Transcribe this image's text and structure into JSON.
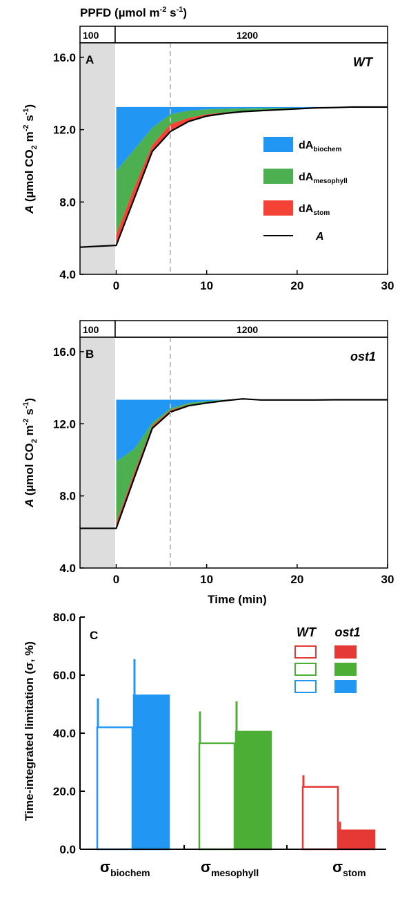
{
  "ppfd_label": "PPFD (µmol m⁻² s⁻¹)",
  "chart_data": [
    {
      "type": "area",
      "panel": "A",
      "genotype": "WT",
      "ppfd_bar": [
        {
          "label": "100",
          "from": -4,
          "to": 0
        },
        {
          "label": "1200",
          "from": 0,
          "to": 30
        }
      ],
      "xlim": [
        -4,
        30
      ],
      "ylim": [
        4.0,
        16.8
      ],
      "xticks": [
        "0",
        "10",
        "20",
        "30"
      ],
      "yticks": [
        "4.0",
        "8.0",
        "12.0",
        "16.0"
      ],
      "ylabel": "A (µmol CO₂ m⁻² s⁻¹)",
      "xlabel": "",
      "legend": [
        "dAbiochem",
        "dAmesophyll",
        "dAstom",
        "A"
      ],
      "dashed_line_x": 6,
      "A": {
        "x": [
          -4,
          0,
          2,
          4,
          6,
          8,
          10,
          12,
          14,
          16,
          18,
          20,
          22,
          24,
          26,
          28,
          30
        ],
        "y": [
          5.5,
          5.6,
          8.2,
          10.8,
          11.9,
          12.45,
          12.75,
          12.9,
          13.0,
          13.05,
          13.1,
          13.15,
          13.2,
          13.22,
          13.25,
          13.25,
          13.25
        ]
      },
      "stom_top": {
        "x": [
          0,
          2,
          4,
          6,
          8,
          10,
          12,
          14,
          16,
          18,
          20,
          22,
          24,
          26,
          28,
          30
        ],
        "y": [
          6.2,
          8.8,
          11.15,
          12.3,
          12.65,
          12.85,
          12.95,
          13.03,
          13.08,
          13.12,
          13.16,
          13.2,
          13.22,
          13.25,
          13.25,
          13.25
        ]
      },
      "mesophyll_top": {
        "x": [
          0,
          2,
          4,
          6,
          8,
          10,
          12,
          14,
          16,
          18,
          20,
          22,
          24,
          26,
          28,
          30
        ],
        "y": [
          9.7,
          10.9,
          12.1,
          12.85,
          13.05,
          13.12,
          13.15,
          13.17,
          13.19,
          13.2,
          13.21,
          13.22,
          13.23,
          13.25,
          13.25,
          13.25
        ]
      },
      "biochem_top": {
        "x": [
          0,
          30
        ],
        "y": [
          13.25,
          13.25
        ]
      }
    },
    {
      "type": "area",
      "panel": "B",
      "genotype": "ost1",
      "ppfd_bar": [
        {
          "label": "100",
          "from": -4,
          "to": 0
        },
        {
          "label": "1200",
          "from": 0,
          "to": 30
        }
      ],
      "xlim": [
        -4,
        30
      ],
      "ylim": [
        4.0,
        16.8
      ],
      "xticks": [
        "0",
        "10",
        "20",
        "30"
      ],
      "yticks": [
        "4.0",
        "8.0",
        "12.0",
        "16.0"
      ],
      "ylabel": "A (µmol CO₂ m⁻² s⁻¹)",
      "xlabel": "Time (min)",
      "dashed_line_x": 6,
      "A": {
        "x": [
          -4,
          0,
          2,
          4,
          6,
          8,
          10,
          12,
          14,
          16,
          18,
          20,
          22,
          24,
          26,
          28,
          30
        ],
        "y": [
          6.2,
          6.2,
          9.0,
          11.75,
          12.65,
          13.0,
          13.15,
          13.28,
          13.38,
          13.32,
          13.32,
          13.32,
          13.32,
          13.33,
          13.33,
          13.33,
          13.33
        ]
      },
      "stom_top": {
        "x": [
          0,
          2,
          4,
          6,
          8,
          10,
          12,
          14,
          16,
          18,
          20,
          22,
          24,
          26,
          28,
          30
        ],
        "y": [
          6.5,
          9.3,
          11.9,
          12.75,
          13.05,
          13.18,
          13.3,
          13.38,
          13.33,
          13.32,
          13.32,
          13.32,
          13.33,
          13.33,
          13.33,
          13.33
        ]
      },
      "mesophyll_top": {
        "x": [
          0,
          2,
          4,
          6,
          8,
          10,
          12,
          14,
          16,
          18,
          20,
          22,
          24,
          26,
          28,
          30
        ],
        "y": [
          9.9,
          10.6,
          12.05,
          12.85,
          13.15,
          13.25,
          13.33,
          13.38,
          13.33,
          13.32,
          13.32,
          13.32,
          13.33,
          13.33,
          13.33,
          13.33
        ]
      },
      "biochem_top": {
        "x": [
          0,
          30
        ],
        "y": [
          13.33,
          13.33
        ]
      }
    },
    {
      "type": "bar",
      "panel": "C",
      "ylabel": "Time-integrated limitation (σ, %)",
      "ylim": [
        0,
        80
      ],
      "yticks": [
        "0.0",
        "20.0",
        "40.0",
        "60.0",
        "80.0"
      ],
      "categories": [
        "σbiochem",
        "σmesophyll",
        "σstom"
      ],
      "series": [
        {
          "name": "WT",
          "values": [
            42.0,
            36.5,
            21.5
          ],
          "errors": [
            10.0,
            11.0,
            4.0
          ]
        },
        {
          "name": "ost1",
          "values": [
            53.0,
            40.5,
            6.5
          ],
          "errors": [
            12.5,
            10.5,
            3.0
          ]
        }
      ],
      "colors": [
        "#2196f3",
        "#4caf35",
        "#e53935"
      ],
      "legend": "top-right"
    }
  ],
  "text": {
    "label_100": "100",
    "label_1200": "1200",
    "panel_a": "A",
    "panel_b": "B",
    "panel_c": "C",
    "wt": "WT",
    "ost1": "ost1",
    "time_label": "Time (min)",
    "legend_d": "dA",
    "sub_biochem": "biochem",
    "sub_mesophyll": "mesophyll",
    "sub_stom": "stom",
    "legend_a": "A",
    "cat_base": "σ",
    "sigma_label": "Time-integrated limitation (σ, %)"
  },
  "colors": {
    "biochem": "#2196f3",
    "mesophyll": "#4caf50",
    "stom": "#f44336",
    "shade": "#dddddd",
    "bar_biochem": "#2196f3",
    "bar_mesophyll": "#4caf35",
    "bar_stom": "#e53935"
  }
}
